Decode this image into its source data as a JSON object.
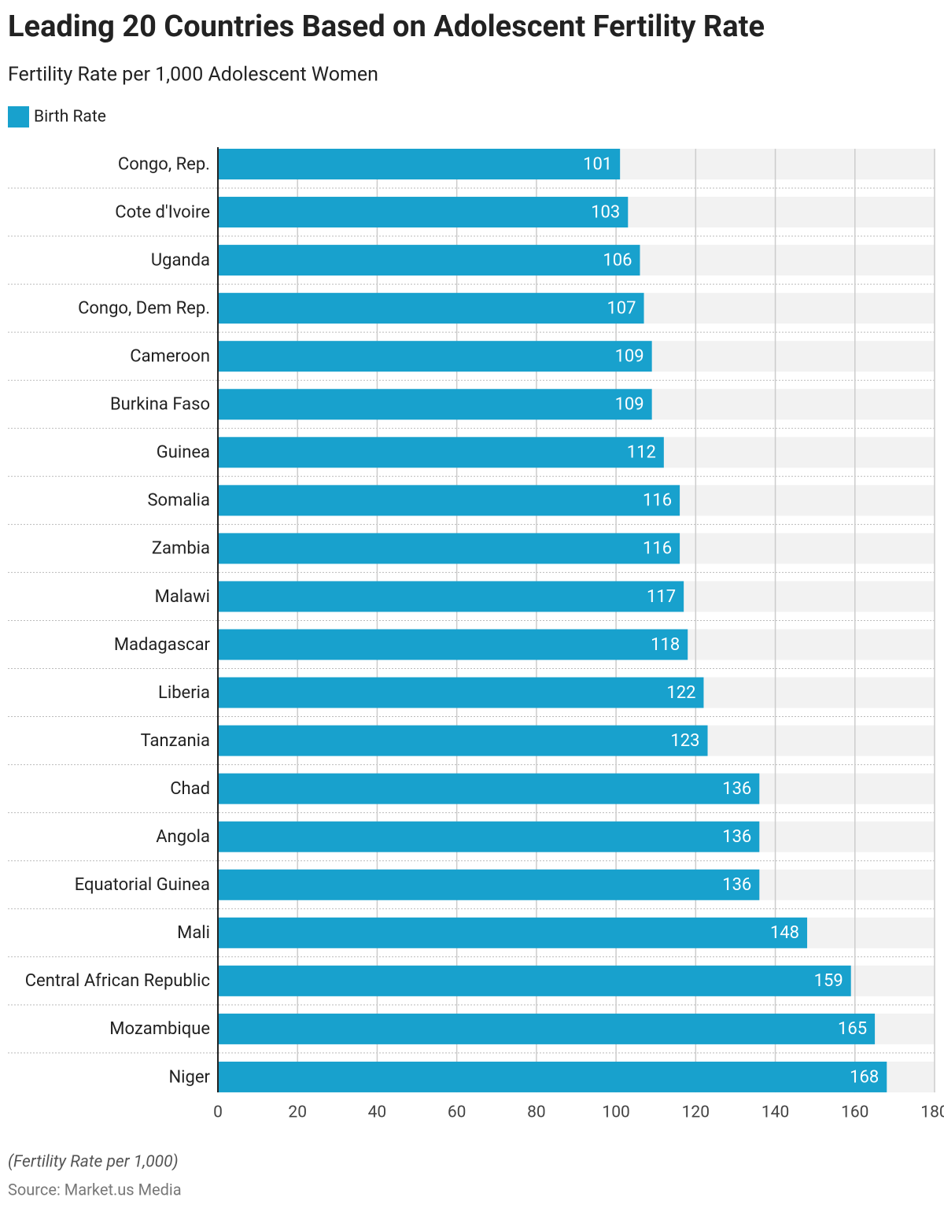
{
  "chart_data": {
    "type": "bar",
    "orientation": "horizontal",
    "title": "Leading 20 Countries Based on Adolescent Fertility Rate",
    "subtitle": "Fertility Rate per 1,000 Adolescent Women",
    "categories": [
      "Congo, Rep.",
      "Cote d'Ivoire",
      "Uganda",
      "Congo, Dem Rep.",
      "Cameroon",
      "Burkina Faso",
      "Guinea",
      "Somalia",
      "Zambia",
      "Malawi",
      "Madagascar",
      "Liberia",
      "Tanzania",
      "Chad",
      "Angola",
      "Equatorial Guinea",
      "Mali",
      "Central African Republic",
      "Mozambique",
      "Niger"
    ],
    "series": [
      {
        "name": "Birth Rate",
        "color": "#18a1cd",
        "values": [
          101,
          103,
          106,
          107,
          109,
          109,
          112,
          116,
          116,
          117,
          118,
          122,
          123,
          136,
          136,
          136,
          148,
          159,
          165,
          168
        ]
      }
    ],
    "xlim": [
      0,
      180
    ],
    "xticks": [
      0,
      20,
      40,
      60,
      80,
      100,
      120,
      140,
      160,
      180
    ],
    "grid": true,
    "legend": "top-left",
    "footnote": "(Fertility Rate per 1,000)",
    "source": "Source: Market.us Media"
  }
}
